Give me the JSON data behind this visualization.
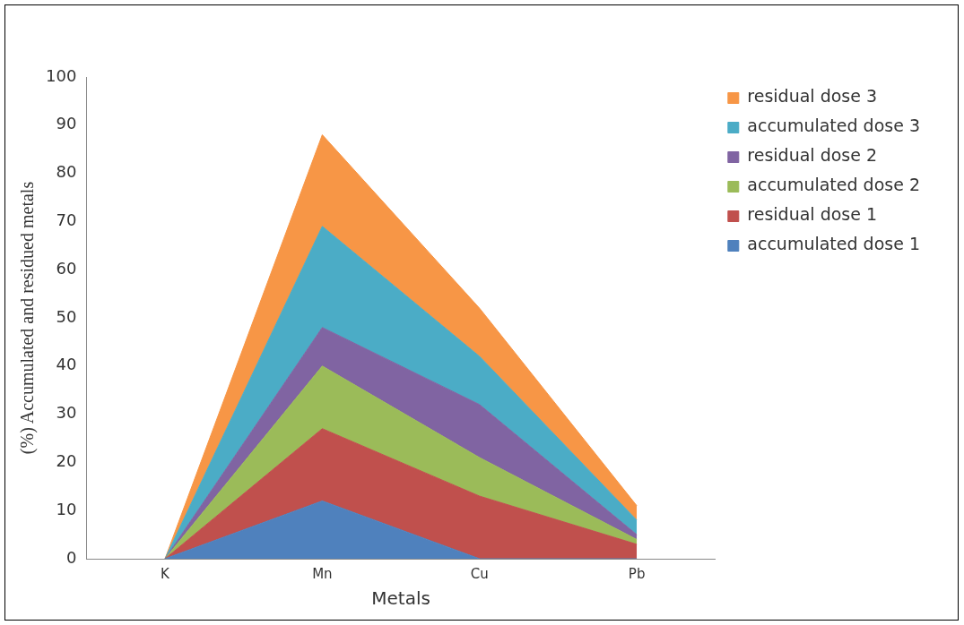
{
  "chart_data": {
    "type": "area",
    "stacked": true,
    "xlabel": "Metals",
    "ylabel": "(%) Accumulated and residued metals",
    "categories": [
      "K",
      "Mn",
      "Cu",
      "Pb"
    ],
    "series": [
      {
        "name": "accumulated dose 1",
        "color": "#4f81bd",
        "values": [
          0,
          12,
          0,
          0
        ]
      },
      {
        "name": "residual dose 1",
        "color": "#c0504d",
        "values": [
          0,
          15,
          13,
          3
        ]
      },
      {
        "name": "accumulated dose 2",
        "color": "#9bbb59",
        "values": [
          0,
          13,
          8,
          1
        ]
      },
      {
        "name": "residual dose 2",
        "color": "#8064a2",
        "values": [
          0,
          8,
          11,
          1
        ]
      },
      {
        "name": "accumulated dose 3",
        "color": "#4bacc6",
        "values": [
          0,
          21,
          10,
          3
        ]
      },
      {
        "name": "residual dose 3",
        "color": "#f79646",
        "values": [
          0,
          19,
          10,
          3
        ]
      }
    ],
    "ylim": [
      0,
      100
    ],
    "yticks": [
      0,
      10,
      20,
      30,
      40,
      50,
      60,
      70,
      80,
      90,
      100
    ],
    "grid": false,
    "legend": "top right"
  }
}
